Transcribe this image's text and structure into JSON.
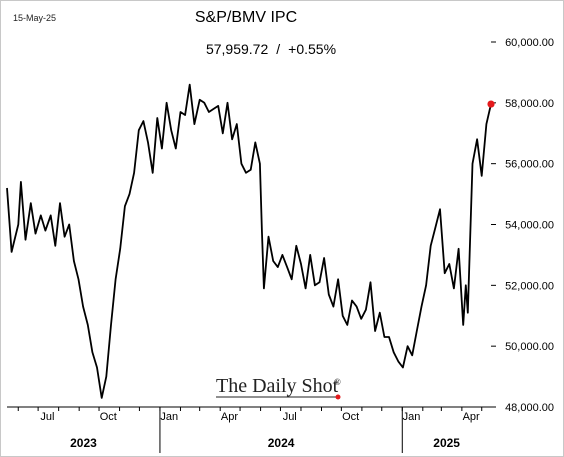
{
  "date_stamp": "15-May-25",
  "watermark": "The Daily Shot",
  "watermark_mark": "®",
  "chart_data": {
    "type": "line",
    "title": "S&P/BMV IPC",
    "subtitle": {
      "last_value": "57,959.72",
      "separator": "/",
      "change": "+0.55%"
    },
    "x_range": [
      "2023-05-15",
      "2025-05-15"
    ],
    "ylim": [
      48000,
      60000
    ],
    "y_ticks": [
      48000,
      50000,
      52000,
      54000,
      56000,
      58000,
      60000
    ],
    "y_tick_labels": [
      "48,000.00",
      "50,000.00",
      "52,000.00",
      "54,000.00",
      "56,000.00",
      "58,000.00",
      "60,000.00"
    ],
    "x_tick_labels": [
      "Jul",
      "Oct",
      "Jan",
      "Apr",
      "Jul",
      "Oct",
      "Jan",
      "Apr"
    ],
    "year_labels": [
      "2023",
      "2024",
      "2025"
    ],
    "series": [
      {
        "color": "#000000",
        "end_marker_color": "#e41a1c",
        "x": [
          "2023-05-15",
          "2023-05-22",
          "2023-06-01",
          "2023-06-05",
          "2023-06-12",
          "2023-06-20",
          "2023-06-27",
          "2023-07-05",
          "2023-07-12",
          "2023-07-20",
          "2023-07-27",
          "2023-08-03",
          "2023-08-10",
          "2023-08-17",
          "2023-08-24",
          "2023-08-31",
          "2023-09-07",
          "2023-09-14",
          "2023-09-21",
          "2023-09-28",
          "2023-10-05",
          "2023-10-12",
          "2023-10-19",
          "2023-10-26",
          "2023-11-02",
          "2023-11-09",
          "2023-11-16",
          "2023-11-23",
          "2023-11-30",
          "2023-12-07",
          "2023-12-14",
          "2023-12-21",
          "2023-12-28",
          "2024-01-04",
          "2024-01-11",
          "2024-01-18",
          "2024-01-25",
          "2024-02-01",
          "2024-02-08",
          "2024-02-15",
          "2024-02-22",
          "2024-03-01",
          "2024-03-08",
          "2024-03-15",
          "2024-03-22",
          "2024-03-29",
          "2024-04-05",
          "2024-04-12",
          "2024-04-19",
          "2024-04-26",
          "2024-05-03",
          "2024-05-10",
          "2024-05-17",
          "2024-05-24",
          "2024-05-31",
          "2024-06-03",
          "2024-06-06",
          "2024-06-13",
          "2024-06-20",
          "2024-06-27",
          "2024-07-04",
          "2024-07-11",
          "2024-07-18",
          "2024-07-25",
          "2024-08-01",
          "2024-08-08",
          "2024-08-15",
          "2024-08-22",
          "2024-08-29",
          "2024-09-05",
          "2024-09-12",
          "2024-09-19",
          "2024-09-26",
          "2024-10-03",
          "2024-10-10",
          "2024-10-17",
          "2024-10-24",
          "2024-10-31",
          "2024-11-07",
          "2024-11-14",
          "2024-11-21",
          "2024-11-28",
          "2024-12-05",
          "2024-12-12",
          "2024-12-19",
          "2024-12-26",
          "2025-01-02",
          "2025-01-09",
          "2025-01-16",
          "2025-01-23",
          "2025-01-30",
          "2025-02-06",
          "2025-02-13",
          "2025-02-20",
          "2025-02-27",
          "2025-03-06",
          "2025-03-13",
          "2025-03-20",
          "2025-03-27",
          "2025-04-03",
          "2025-04-07",
          "2025-04-10",
          "2025-04-17",
          "2025-04-24",
          "2025-05-01",
          "2025-05-08",
          "2025-05-15"
        ],
        "values": [
          55200,
          53100,
          54000,
          55400,
          53500,
          54700,
          53700,
          54300,
          53800,
          54300,
          53300,
          54700,
          53600,
          54000,
          52800,
          52200,
          51300,
          50700,
          49800,
          49300,
          48300,
          49000,
          50700,
          52200,
          53200,
          54600,
          55000,
          55700,
          57100,
          57400,
          56700,
          55700,
          57500,
          56500,
          58000,
          57100,
          56500,
          57700,
          57600,
          58600,
          57300,
          58100,
          58000,
          57700,
          57800,
          57900,
          57000,
          58000,
          56800,
          57300,
          56000,
          55700,
          55800,
          56700,
          56000,
          53800,
          51900,
          53600,
          52800,
          52600,
          53000,
          52600,
          52200,
          53300,
          52700,
          51900,
          53000,
          52000,
          52100,
          52900,
          51700,
          51300,
          52200,
          51000,
          50700,
          51500,
          51300,
          50900,
          51200,
          52100,
          50500,
          51100,
          50300,
          50300,
          49800,
          49500,
          49300,
          50000,
          49700,
          50500,
          51300,
          52000,
          53300,
          53900,
          54500,
          52400,
          52700,
          51900,
          53200,
          50700,
          52000,
          51100,
          56000,
          56800,
          55600,
          57300,
          57959.72
        ]
      }
    ]
  }
}
